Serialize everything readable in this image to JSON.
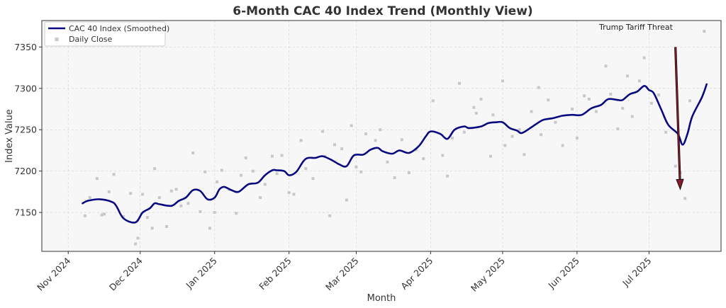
{
  "chart_data": {
    "type": "line",
    "title": "6-Month CAC 40 Index Trend (Monthly View)",
    "xlabel": "Month",
    "ylabel": "Index Value",
    "x_range": [
      "2024-10-21",
      "2025-07-31"
    ],
    "ylim": [
      7103,
      7382
    ],
    "y_ticks": [
      7150,
      7200,
      7250,
      7300,
      7350
    ],
    "x_ticks": [
      {
        "date": "2024-11-01",
        "label": "Nov 2024"
      },
      {
        "date": "2024-12-01",
        "label": "Dec 2024"
      },
      {
        "date": "2025-01-01",
        "label": "Jan 2025"
      },
      {
        "date": "2025-02-01",
        "label": "Feb 2025"
      },
      {
        "date": "2025-03-01",
        "label": "Mar 2025"
      },
      {
        "date": "2025-04-01",
        "label": "Apr 2025"
      },
      {
        "date": "2025-05-01",
        "label": "May 2025"
      },
      {
        "date": "2025-06-01",
        "label": "Jun 2025"
      },
      {
        "date": "2025-07-01",
        "label": "Jul 2025"
      }
    ],
    "grid": true,
    "legend_position": "top-left",
    "colors": {
      "line": "#0a0a80",
      "scatter": "#c8c8c8",
      "arrow": "#8b1a2a",
      "background": "#f7f7f7"
    },
    "series": [
      {
        "name": "CAC 40 Index (Smoothed)",
        "kind": "line",
        "points": [
          [
            "2024-11-07",
            7161
          ],
          [
            "2024-11-09",
            7164
          ],
          [
            "2024-11-14",
            7166
          ],
          [
            "2024-11-19",
            7163
          ],
          [
            "2024-11-21",
            7158
          ],
          [
            "2024-11-24",
            7143
          ],
          [
            "2024-11-29",
            7138
          ],
          [
            "2024-12-02",
            7150
          ],
          [
            "2024-12-05",
            7155
          ],
          [
            "2024-12-07",
            7161
          ],
          [
            "2024-12-09",
            7160
          ],
          [
            "2024-12-14",
            7158
          ],
          [
            "2024-12-17",
            7164
          ],
          [
            "2024-12-20",
            7168
          ],
          [
            "2024-12-23",
            7177
          ],
          [
            "2024-12-26",
            7176
          ],
          [
            "2024-12-29",
            7166
          ],
          [
            "2025-01-01",
            7168
          ],
          [
            "2025-01-03",
            7178
          ],
          [
            "2025-01-05",
            7181
          ],
          [
            "2025-01-08",
            7177
          ],
          [
            "2025-01-11",
            7175
          ],
          [
            "2025-01-15",
            7184
          ],
          [
            "2025-01-19",
            7186
          ],
          [
            "2025-01-22",
            7195
          ],
          [
            "2025-01-25",
            7201
          ],
          [
            "2025-01-27",
            7201
          ],
          [
            "2025-01-30",
            7200
          ],
          [
            "2025-02-01",
            7195
          ],
          [
            "2025-02-04",
            7199
          ],
          [
            "2025-02-07",
            7212
          ],
          [
            "2025-02-09",
            7216
          ],
          [
            "2025-02-12",
            7216
          ],
          [
            "2025-02-15",
            7218
          ],
          [
            "2025-02-19",
            7213
          ],
          [
            "2025-02-22",
            7208
          ],
          [
            "2025-02-25",
            7206
          ],
          [
            "2025-02-28",
            7219
          ],
          [
            "2025-03-04",
            7220
          ],
          [
            "2025-03-07",
            7226
          ],
          [
            "2025-03-10",
            7228
          ],
          [
            "2025-03-12",
            7224
          ],
          [
            "2025-03-16",
            7221
          ],
          [
            "2025-03-19",
            7225
          ],
          [
            "2025-03-23",
            7222
          ],
          [
            "2025-03-27",
            7230
          ],
          [
            "2025-03-30",
            7242
          ],
          [
            "2025-04-01",
            7248
          ],
          [
            "2025-04-05",
            7245
          ],
          [
            "2025-04-08",
            7239
          ],
          [
            "2025-04-11",
            7250
          ],
          [
            "2025-04-15",
            7254
          ],
          [
            "2025-04-17",
            7252
          ],
          [
            "2025-04-22",
            7254
          ],
          [
            "2025-04-25",
            7258
          ],
          [
            "2025-04-28",
            7259
          ],
          [
            "2025-05-01",
            7259
          ],
          [
            "2025-05-04",
            7252
          ],
          [
            "2025-05-07",
            7249
          ],
          [
            "2025-05-09",
            7246
          ],
          [
            "2025-05-13",
            7253
          ],
          [
            "2025-05-15",
            7257
          ],
          [
            "2025-05-18",
            7262
          ],
          [
            "2025-05-22",
            7264
          ],
          [
            "2025-05-26",
            7267
          ],
          [
            "2025-05-30",
            7268
          ],
          [
            "2025-06-03",
            7268
          ],
          [
            "2025-06-07",
            7276
          ],
          [
            "2025-06-11",
            7280
          ],
          [
            "2025-06-14",
            7287
          ],
          [
            "2025-06-18",
            7286
          ],
          [
            "2025-06-20",
            7286
          ],
          [
            "2025-06-23",
            7293
          ],
          [
            "2025-06-26",
            7296
          ],
          [
            "2025-06-29",
            7303
          ],
          [
            "2025-07-01",
            7298
          ],
          [
            "2025-07-03",
            7294
          ],
          [
            "2025-07-06",
            7275
          ],
          [
            "2025-07-09",
            7256
          ],
          [
            "2025-07-13",
            7245
          ],
          [
            "2025-07-15",
            7232
          ],
          [
            "2025-07-17",
            7245
          ],
          [
            "2025-07-19",
            7266
          ],
          [
            "2025-07-23",
            7289
          ],
          [
            "2025-07-25",
            7305
          ]
        ]
      },
      {
        "name": "Daily Close",
        "kind": "scatter",
        "points": [
          [
            "2024-11-08",
            7146
          ],
          [
            "2024-11-10",
            7168
          ],
          [
            "2024-11-13",
            7191
          ],
          [
            "2024-11-15",
            7147
          ],
          [
            "2024-11-16",
            7148
          ],
          [
            "2024-11-18",
            7175
          ],
          [
            "2024-11-20",
            7196
          ],
          [
            "2024-11-24",
            7145
          ],
          [
            "2024-11-27",
            7173
          ],
          [
            "2024-11-29",
            7112
          ],
          [
            "2024-11-30",
            7119
          ],
          [
            "2024-12-02",
            7172
          ],
          [
            "2024-12-04",
            7144
          ],
          [
            "2024-12-06",
            7131
          ],
          [
            "2024-12-07",
            7203
          ],
          [
            "2024-12-09",
            7168
          ],
          [
            "2024-12-12",
            7133
          ],
          [
            "2024-12-14",
            7176
          ],
          [
            "2024-12-16",
            7178
          ],
          [
            "2024-12-18",
            7158
          ],
          [
            "2024-12-21",
            7161
          ],
          [
            "2024-12-23",
            7222
          ],
          [
            "2024-12-26",
            7151
          ],
          [
            "2024-12-28",
            7199
          ],
          [
            "2024-12-30",
            7131
          ],
          [
            "2025-01-01",
            7150
          ],
          [
            "2025-01-02",
            7187
          ],
          [
            "2025-01-04",
            7201
          ],
          [
            "2025-01-07",
            7178
          ],
          [
            "2025-01-10",
            7149
          ],
          [
            "2025-01-12",
            7195
          ],
          [
            "2025-01-14",
            7216
          ],
          [
            "2025-01-17",
            7200
          ],
          [
            "2025-01-20",
            7168
          ],
          [
            "2025-01-22",
            7184
          ],
          [
            "2025-01-25",
            7218
          ],
          [
            "2025-01-27",
            7197
          ],
          [
            "2025-01-29",
            7219
          ],
          [
            "2025-02-01",
            7174
          ],
          [
            "2025-02-03",
            7172
          ],
          [
            "2025-02-06",
            7237
          ],
          [
            "2025-02-08",
            7203
          ],
          [
            "2025-02-11",
            7191
          ],
          [
            "2025-02-15",
            7248
          ],
          [
            "2025-02-16",
            7218
          ],
          [
            "2025-02-18",
            7146
          ],
          [
            "2025-02-20",
            7232
          ],
          [
            "2025-02-23",
            7227
          ],
          [
            "2025-02-25",
            7165
          ],
          [
            "2025-02-27",
            7255
          ],
          [
            "2025-03-01",
            7205
          ],
          [
            "2025-03-03",
            7199
          ],
          [
            "2025-03-05",
            7245
          ],
          [
            "2025-03-09",
            7237
          ],
          [
            "2025-03-11",
            7250
          ],
          [
            "2025-03-14",
            7211
          ],
          [
            "2025-03-17",
            7192
          ],
          [
            "2025-03-20",
            7238
          ],
          [
            "2025-03-23",
            7198
          ],
          [
            "2025-03-26",
            7226
          ],
          [
            "2025-03-29",
            7215
          ],
          [
            "2025-04-02",
            7285
          ],
          [
            "2025-04-06",
            7219
          ],
          [
            "2025-04-08",
            7194
          ],
          [
            "2025-04-10",
            7240
          ],
          [
            "2025-04-13",
            7306
          ],
          [
            "2025-04-15",
            7247
          ],
          [
            "2025-04-19",
            7277
          ],
          [
            "2025-04-20",
            7270
          ],
          [
            "2025-04-22",
            7287
          ],
          [
            "2025-04-26",
            7218
          ],
          [
            "2025-04-27",
            7268
          ],
          [
            "2025-05-01",
            7309
          ],
          [
            "2025-05-02",
            7231
          ],
          [
            "2025-05-05",
            7242
          ],
          [
            "2025-05-08",
            7250
          ],
          [
            "2025-05-10",
            7220
          ],
          [
            "2025-05-13",
            7272
          ],
          [
            "2025-05-16",
            7301
          ],
          [
            "2025-05-17",
            7244
          ],
          [
            "2025-05-20",
            7286
          ],
          [
            "2025-05-23",
            7259
          ],
          [
            "2025-05-26",
            7231
          ],
          [
            "2025-05-30",
            7275
          ],
          [
            "2025-06-01",
            7240
          ],
          [
            "2025-06-04",
            7291
          ],
          [
            "2025-06-06",
            7287
          ],
          [
            "2025-06-09",
            7272
          ],
          [
            "2025-06-13",
            7327
          ],
          [
            "2025-06-15",
            7293
          ],
          [
            "2025-06-18",
            7251
          ],
          [
            "2025-06-20",
            7276
          ],
          [
            "2025-06-22",
            7315
          ],
          [
            "2025-06-24",
            7266
          ],
          [
            "2025-06-27",
            7309
          ],
          [
            "2025-06-29",
            7337
          ],
          [
            "2025-07-02",
            7282
          ],
          [
            "2025-07-05",
            7292
          ],
          [
            "2025-07-08",
            7247
          ],
          [
            "2025-07-12",
            7206
          ],
          [
            "2025-07-14",
            7198
          ],
          [
            "2025-07-16",
            7167
          ],
          [
            "2025-07-18",
            7285
          ],
          [
            "2025-07-24",
            7369
          ]
        ]
      }
    ],
    "annotation": {
      "text": "Trump Tariff Threat",
      "arrow_from": [
        "2025-07-12",
        7350
      ],
      "arrow_to": [
        "2025-07-14",
        7178
      ]
    }
  }
}
